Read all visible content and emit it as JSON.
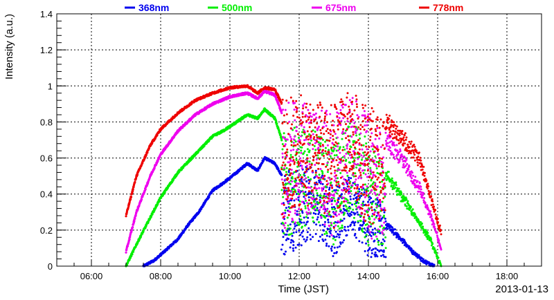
{
  "chart_data": {
    "type": "scatter",
    "title": "",
    "xlabel": "Time (JST)",
    "ylabel": "Intensity (a.u.)",
    "date_label": "2013-01-13",
    "x_ticks": [
      "06:00",
      "08:00",
      "10:00",
      "12:00",
      "14:00",
      "16:00",
      "18:00"
    ],
    "x_tick_hours": [
      6,
      8,
      10,
      12,
      14,
      16,
      18
    ],
    "xlim_hours": [
      5.0,
      19.0
    ],
    "y_ticks": [
      "0",
      "0.2",
      "0.4",
      "0.6",
      "0.8",
      "1",
      "1.2",
      "1.4"
    ],
    "y_tick_values": [
      0,
      0.2,
      0.4,
      0.6,
      0.8,
      1.0,
      1.2,
      1.4
    ],
    "ylim": [
      0,
      1.4
    ],
    "grid": true,
    "legend_position": "top",
    "series": [
      {
        "name": "368nm",
        "color": "#0000ee",
        "smooth": [
          [
            7.5,
            0.0
          ],
          [
            7.8,
            0.03
          ],
          [
            8.1,
            0.08
          ],
          [
            8.5,
            0.15
          ],
          [
            8.8,
            0.23
          ],
          [
            9.1,
            0.3
          ],
          [
            9.5,
            0.42
          ],
          [
            9.8,
            0.46
          ],
          [
            10.2,
            0.52
          ],
          [
            10.5,
            0.57
          ],
          [
            10.8,
            0.53
          ],
          [
            11.0,
            0.6
          ],
          [
            11.3,
            0.57
          ],
          [
            11.5,
            0.5
          ]
        ],
        "scatter_range": [
          [
            11.5,
            0.05,
            0.55
          ],
          [
            12.0,
            0.1,
            0.58
          ],
          [
            12.5,
            0.15,
            0.55
          ],
          [
            13.0,
            0.05,
            0.45
          ],
          [
            13.5,
            0.2,
            0.5
          ],
          [
            14.0,
            0.05,
            0.45
          ],
          [
            14.5,
            0.05,
            0.3
          ]
        ],
        "tail": [
          [
            14.5,
            0.25
          ],
          [
            15.0,
            0.15
          ],
          [
            15.3,
            0.08
          ],
          [
            15.6,
            0.03
          ],
          [
            15.9,
            0.0
          ]
        ]
      },
      {
        "name": "500nm",
        "color": "#00ee00",
        "smooth": [
          [
            7.0,
            0.0
          ],
          [
            7.3,
            0.12
          ],
          [
            7.7,
            0.27
          ],
          [
            8.0,
            0.38
          ],
          [
            8.5,
            0.52
          ],
          [
            9.0,
            0.62
          ],
          [
            9.5,
            0.72
          ],
          [
            9.8,
            0.75
          ],
          [
            10.2,
            0.8
          ],
          [
            10.5,
            0.84
          ],
          [
            10.8,
            0.82
          ],
          [
            11.0,
            0.87
          ],
          [
            11.3,
            0.82
          ],
          [
            11.5,
            0.7
          ]
        ],
        "scatter_range": [
          [
            11.5,
            0.15,
            0.75
          ],
          [
            12.0,
            0.2,
            0.78
          ],
          [
            12.5,
            0.25,
            0.75
          ],
          [
            13.0,
            0.1,
            0.7
          ],
          [
            13.5,
            0.3,
            0.8
          ],
          [
            14.0,
            0.1,
            0.7
          ],
          [
            14.5,
            0.1,
            0.55
          ]
        ],
        "tail": [
          [
            14.5,
            0.55
          ],
          [
            15.0,
            0.4
          ],
          [
            15.5,
            0.25
          ],
          [
            15.8,
            0.15
          ],
          [
            16.1,
            0.0
          ]
        ]
      },
      {
        "name": "675nm",
        "color": "#ee00ee",
        "smooth": [
          [
            7.0,
            0.08
          ],
          [
            7.3,
            0.3
          ],
          [
            7.7,
            0.5
          ],
          [
            8.0,
            0.62
          ],
          [
            8.5,
            0.75
          ],
          [
            9.0,
            0.84
          ],
          [
            9.5,
            0.9
          ],
          [
            10.0,
            0.94
          ],
          [
            10.5,
            0.96
          ],
          [
            10.8,
            0.93
          ],
          [
            11.0,
            0.97
          ],
          [
            11.3,
            0.95
          ],
          [
            11.5,
            0.85
          ]
        ],
        "scatter_range": [
          [
            11.5,
            0.2,
            0.9
          ],
          [
            12.0,
            0.25,
            0.92
          ],
          [
            12.5,
            0.3,
            0.88
          ],
          [
            13.0,
            0.15,
            0.85
          ],
          [
            13.5,
            0.4,
            0.95
          ],
          [
            14.0,
            0.15,
            0.85
          ],
          [
            14.5,
            0.15,
            0.7
          ]
        ],
        "tail": [
          [
            14.5,
            0.75
          ],
          [
            15.0,
            0.62
          ],
          [
            15.5,
            0.45
          ],
          [
            15.8,
            0.3
          ],
          [
            16.1,
            0.1
          ]
        ]
      },
      {
        "name": "778nm",
        "color": "#ee0000",
        "smooth": [
          [
            7.0,
            0.28
          ],
          [
            7.3,
            0.5
          ],
          [
            7.7,
            0.67
          ],
          [
            8.0,
            0.76
          ],
          [
            8.5,
            0.85
          ],
          [
            9.0,
            0.92
          ],
          [
            9.5,
            0.96
          ],
          [
            10.0,
            0.99
          ],
          [
            10.5,
            1.0
          ],
          [
            10.8,
            0.96
          ],
          [
            11.0,
            0.99
          ],
          [
            11.3,
            0.98
          ],
          [
            11.5,
            0.9
          ]
        ],
        "scatter_range": [
          [
            11.5,
            0.25,
            0.95
          ],
          [
            12.0,
            0.3,
            0.95
          ],
          [
            12.5,
            0.35,
            0.92
          ],
          [
            13.0,
            0.2,
            0.9
          ],
          [
            13.5,
            0.45,
            0.98
          ],
          [
            14.0,
            0.2,
            0.9
          ],
          [
            14.5,
            0.2,
            0.8
          ]
        ],
        "tail": [
          [
            14.5,
            0.85
          ],
          [
            15.0,
            0.75
          ],
          [
            15.5,
            0.62
          ],
          [
            15.8,
            0.4
          ],
          [
            16.1,
            0.2
          ]
        ]
      }
    ]
  }
}
